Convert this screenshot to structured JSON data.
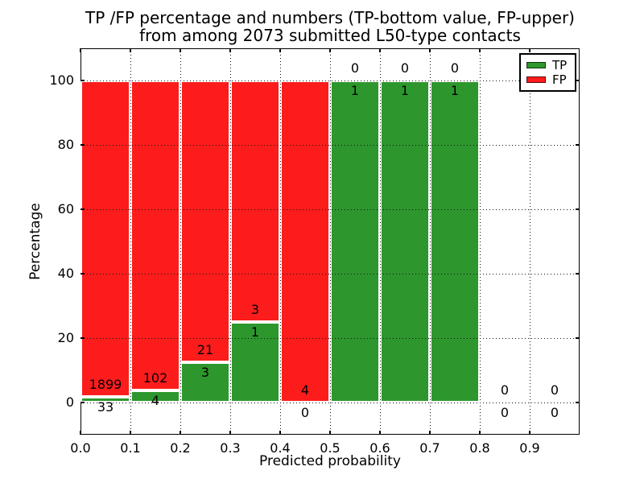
{
  "title": {
    "line1": "TP /FP percentage and numbers (TP-bottom value, FP-upper)",
    "line2": "from among 2073 submitted L50-type contacts"
  },
  "axes": {
    "xlabel": "Predicted probability",
    "ylabel": "Percentage",
    "xlim": [
      0.0,
      1.0
    ],
    "ylim": [
      -10,
      110
    ],
    "x_ticks": [
      {
        "value": 0.0,
        "label": "0.0"
      },
      {
        "value": 0.1,
        "label": "0.1"
      },
      {
        "value": 0.2,
        "label": "0.2"
      },
      {
        "value": 0.3,
        "label": "0.3"
      },
      {
        "value": 0.4,
        "label": "0.4"
      },
      {
        "value": 0.5,
        "label": "0.5"
      },
      {
        "value": 0.6,
        "label": "0.6"
      },
      {
        "value": 0.7,
        "label": "0.7"
      },
      {
        "value": 0.8,
        "label": "0.8"
      },
      {
        "value": 0.9,
        "label": "0.9"
      }
    ],
    "y_ticks": [
      {
        "value": 0,
        "label": "0"
      },
      {
        "value": 20,
        "label": "20"
      },
      {
        "value": 40,
        "label": "40"
      },
      {
        "value": 60,
        "label": "60"
      },
      {
        "value": 80,
        "label": "80"
      },
      {
        "value": 100,
        "label": "100"
      }
    ],
    "grid": true,
    "grid_style": "dotted"
  },
  "legend": {
    "position": "upper-right",
    "entries": [
      {
        "label": "TP",
        "color": "#2d972d"
      },
      {
        "label": "FP",
        "color": "#fd1c1c"
      }
    ]
  },
  "chart_data": {
    "type": "bar",
    "stacked": true,
    "unit": "percent",
    "total_contacts": 2073,
    "colors": {
      "tp": "#2d972d",
      "fp": "#fd1c1c"
    },
    "bar_edge_color": "#ffffff",
    "bins": [
      {
        "range": [
          0.0,
          0.1
        ],
        "tp": 33,
        "fp": 1899,
        "tp_pct": 1.71,
        "fp_pct": 98.29
      },
      {
        "range": [
          0.1,
          0.2
        ],
        "tp": 4,
        "fp": 102,
        "tp_pct": 3.77,
        "fp_pct": 96.23
      },
      {
        "range": [
          0.2,
          0.3
        ],
        "tp": 3,
        "fp": 21,
        "tp_pct": 12.5,
        "fp_pct": 87.5
      },
      {
        "range": [
          0.3,
          0.4
        ],
        "tp": 1,
        "fp": 3,
        "tp_pct": 25.0,
        "fp_pct": 75.0
      },
      {
        "range": [
          0.4,
          0.5
        ],
        "tp": 0,
        "fp": 4,
        "tp_pct": 0.0,
        "fp_pct": 100.0
      },
      {
        "range": [
          0.5,
          0.6
        ],
        "tp": 1,
        "fp": 0,
        "tp_pct": 100.0,
        "fp_pct": 0.0
      },
      {
        "range": [
          0.6,
          0.7
        ],
        "tp": 1,
        "fp": 0,
        "tp_pct": 100.0,
        "fp_pct": 0.0
      },
      {
        "range": [
          0.7,
          0.8
        ],
        "tp": 1,
        "fp": 0,
        "tp_pct": 100.0,
        "fp_pct": 0.0
      },
      {
        "range": [
          0.8,
          0.9
        ],
        "tp": 0,
        "fp": 0,
        "tp_pct": null,
        "fp_pct": null
      },
      {
        "range": [
          0.9,
          1.0
        ],
        "tp": 0,
        "fp": 0,
        "tp_pct": null,
        "fp_pct": null
      }
    ]
  }
}
